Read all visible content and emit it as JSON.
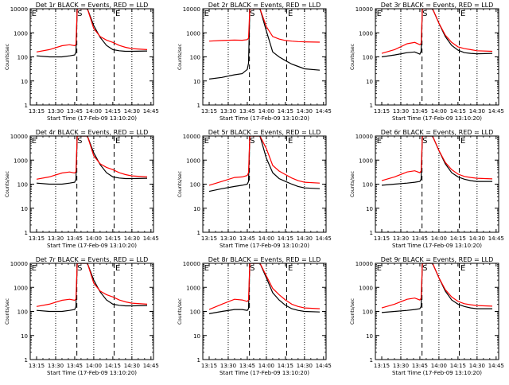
{
  "page": {
    "ylabel": "Counts/sec",
    "xlabel": "Start Time (17-Feb-09 13:10:20)",
    "x_tick_labels": [
      "13:15",
      "13:30",
      "13:45",
      "14:00",
      "14:15",
      "14:30",
      "14:45"
    ],
    "y_tick_labels": [
      "1",
      "10",
      "100",
      "1000",
      "10000"
    ],
    "marker_labels": [
      "E",
      "S",
      "E"
    ],
    "colors": {
      "black_series": "#000000",
      "red_series": "#ff0000"
    }
  },
  "chart_data": [
    {
      "type": "line",
      "title": "Det 1r BLACK = Events, RED = LLD",
      "ylim": [
        1,
        10000
      ],
      "y_scale": "log",
      "x": [
        5,
        15,
        25,
        31,
        35,
        36,
        37,
        38,
        45,
        50,
        55,
        60,
        65,
        70,
        75,
        80,
        92
      ],
      "series": [
        {
          "values": [
            110,
            100,
            100,
            110,
            120,
            160,
            10000,
            10000,
            10000,
            2000,
            650,
            300,
            200,
            180,
            170,
            170,
            175
          ]
        },
        {
          "values": [
            160,
            200,
            290,
            320,
            290,
            330,
            10000,
            10000,
            10000,
            1500,
            700,
            500,
            400,
            300,
            250,
            220,
            200
          ]
        }
      ]
    },
    {
      "type": "line",
      "title": "Det 2r BLACK = Events, RED = LLD",
      "ylim": [
        1,
        10000
      ],
      "y_scale": "log",
      "x": [
        5,
        15,
        25,
        31,
        35,
        36,
        37,
        38,
        45,
        50,
        55,
        60,
        65,
        70,
        75,
        80,
        92
      ],
      "series": [
        {
          "values": [
            12,
            14,
            18,
            20,
            30,
            55,
            10000,
            10000,
            10000,
            1200,
            160,
            100,
            70,
            50,
            40,
            32,
            28
          ]
        },
        {
          "values": [
            450,
            480,
            500,
            490,
            520,
            600,
            10000,
            10000,
            10000,
            1800,
            700,
            550,
            480,
            450,
            430,
            420,
            410
          ]
        }
      ]
    },
    {
      "type": "line",
      "title": "Det 3r BLACK = Events, RED = LLD",
      "ylim": [
        1,
        10000
      ],
      "y_scale": "log",
      "x": [
        5,
        15,
        25,
        31,
        35,
        36,
        37,
        38,
        45,
        50,
        55,
        60,
        65,
        70,
        75,
        80,
        92
      ],
      "series": [
        {
          "values": [
            100,
            120,
            150,
            160,
            130,
            170,
            10000,
            10000,
            10000,
            2500,
            700,
            300,
            190,
            150,
            140,
            135,
            140
          ]
        },
        {
          "values": [
            140,
            200,
            350,
            400,
            320,
            360,
            10000,
            10000,
            10000,
            2500,
            800,
            400,
            260,
            220,
            200,
            180,
            170
          ]
        }
      ]
    },
    {
      "type": "line",
      "title": "Det 4r BLACK = Events, RED = LLD",
      "ylim": [
        1,
        10000
      ],
      "y_scale": "log",
      "x": [
        5,
        15,
        25,
        31,
        35,
        36,
        37,
        38,
        45,
        50,
        55,
        60,
        65,
        70,
        75,
        80,
        92
      ],
      "series": [
        {
          "values": [
            110,
            100,
            100,
            110,
            120,
            160,
            10000,
            10000,
            10000,
            2000,
            650,
            300,
            200,
            180,
            170,
            170,
            175
          ]
        },
        {
          "values": [
            160,
            200,
            290,
            320,
            290,
            330,
            10000,
            10000,
            10000,
            1500,
            700,
            500,
            400,
            300,
            250,
            220,
            200
          ]
        }
      ]
    },
    {
      "type": "line",
      "title": "Det 5r BLACK = Events, RED = LLD",
      "ylim": [
        1,
        10000
      ],
      "y_scale": "log",
      "x": [
        5,
        15,
        25,
        31,
        35,
        36,
        37,
        38,
        45,
        50,
        55,
        60,
        65,
        70,
        75,
        80,
        92
      ],
      "series": [
        {
          "values": [
            50,
            65,
            80,
            90,
            100,
            130,
            10000,
            10000,
            10000,
            1200,
            300,
            170,
            130,
            100,
            80,
            70,
            65
          ]
        },
        {
          "values": [
            90,
            130,
            190,
            200,
            230,
            300,
            10000,
            10000,
            10000,
            3000,
            600,
            350,
            250,
            180,
            140,
            120,
            110
          ]
        }
      ]
    },
    {
      "type": "line",
      "title": "Det 6r BLACK = Events, RED = LLD",
      "ylim": [
        1,
        10000
      ],
      "y_scale": "log",
      "x": [
        5,
        15,
        25,
        31,
        35,
        36,
        37,
        38,
        45,
        50,
        55,
        60,
        65,
        70,
        75,
        80,
        92
      ],
      "series": [
        {
          "values": [
            90,
            100,
            110,
            120,
            130,
            160,
            10000,
            10000,
            10000,
            2500,
            700,
            300,
            200,
            160,
            140,
            130,
            130
          ]
        },
        {
          "values": [
            140,
            200,
            320,
            360,
            300,
            350,
            10000,
            10000,
            10000,
            2500,
            800,
            400,
            260,
            210,
            190,
            175,
            165
          ]
        }
      ]
    },
    {
      "type": "line",
      "title": "Det 7r BLACK = Events, RED = LLD",
      "ylim": [
        1,
        10000
      ],
      "y_scale": "log",
      "x": [
        5,
        15,
        25,
        31,
        35,
        36,
        37,
        38,
        45,
        50,
        55,
        60,
        65,
        70,
        75,
        80,
        92
      ],
      "series": [
        {
          "values": [
            110,
            100,
            100,
            110,
            120,
            160,
            10000,
            10000,
            10000,
            2000,
            650,
            300,
            200,
            180,
            170,
            170,
            175
          ]
        },
        {
          "values": [
            160,
            200,
            290,
            320,
            290,
            330,
            10000,
            10000,
            10000,
            1500,
            700,
            500,
            400,
            300,
            250,
            220,
            200
          ]
        }
      ]
    },
    {
      "type": "line",
      "title": "Det 8r BLACK = Events, RED = LLD",
      "ylim": [
        1,
        10000
      ],
      "y_scale": "log",
      "x": [
        5,
        15,
        25,
        31,
        35,
        36,
        37,
        38,
        45,
        50,
        55,
        60,
        65,
        70,
        75,
        80,
        92
      ],
      "series": [
        {
          "values": [
            80,
            100,
            120,
            120,
            110,
            130,
            10000,
            10000,
            10000,
            2500,
            600,
            300,
            180,
            130,
            110,
            100,
            95
          ]
        },
        {
          "values": [
            120,
            200,
            320,
            300,
            260,
            300,
            10000,
            10000,
            10000,
            3000,
            900,
            500,
            300,
            200,
            160,
            140,
            130
          ]
        }
      ]
    },
    {
      "type": "line",
      "title": "Det 9r BLACK = Events, RED = LLD",
      "ylim": [
        1,
        10000
      ],
      "y_scale": "log",
      "x": [
        5,
        15,
        25,
        31,
        35,
        36,
        37,
        38,
        45,
        50,
        55,
        60,
        65,
        70,
        75,
        80,
        92
      ],
      "series": [
        {
          "values": [
            90,
            100,
            110,
            120,
            130,
            160,
            10000,
            10000,
            10000,
            2500,
            700,
            300,
            200,
            160,
            140,
            130,
            130
          ]
        },
        {
          "values": [
            140,
            200,
            320,
            360,
            300,
            350,
            10000,
            10000,
            10000,
            2500,
            800,
            400,
            260,
            210,
            190,
            175,
            165
          ]
        }
      ]
    }
  ]
}
